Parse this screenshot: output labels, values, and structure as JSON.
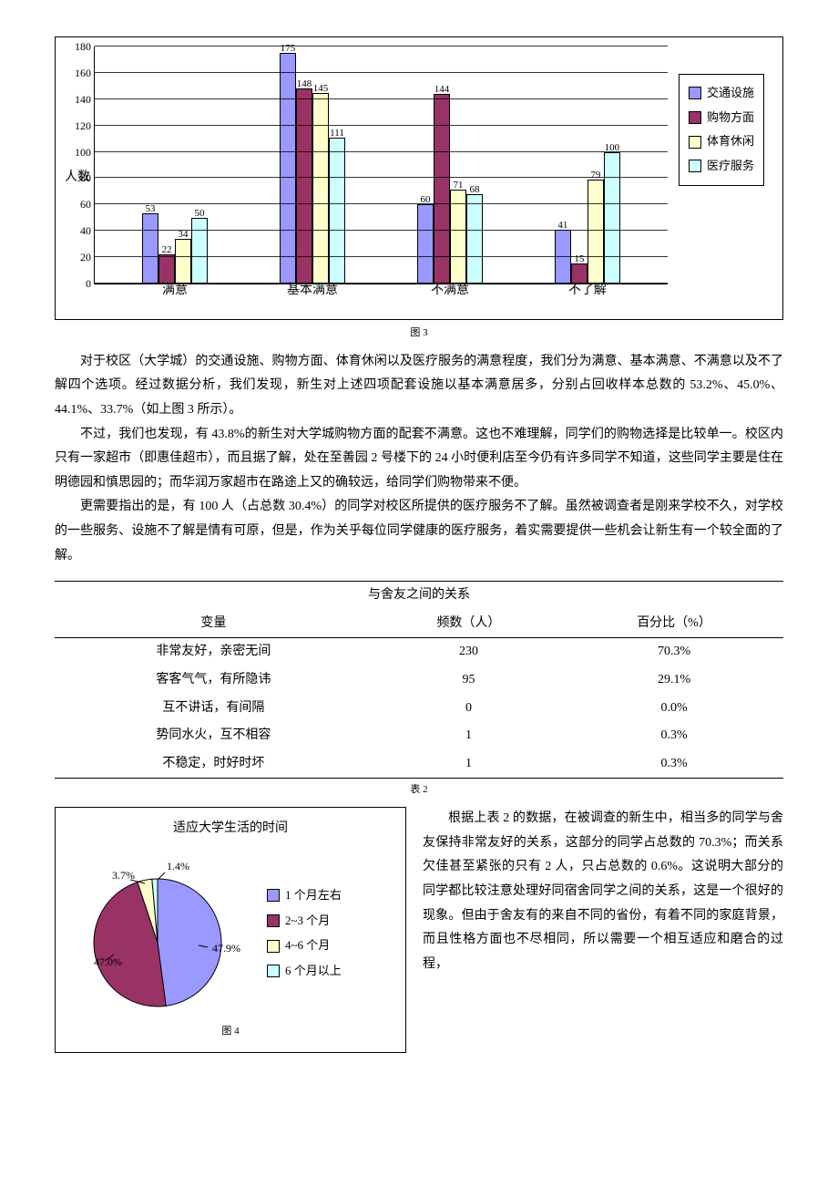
{
  "bar_chart": {
    "type": "bar",
    "y_title": "人数",
    "ylim": [
      0,
      180
    ],
    "ytick_step": 20,
    "yticks": [
      0,
      20,
      40,
      60,
      80,
      100,
      120,
      140,
      160,
      180
    ],
    "categories": [
      "满意",
      "基本满意",
      "不满意",
      "不了解"
    ],
    "series": [
      {
        "name": "交通设施",
        "color": "#9999ff",
        "values": [
          53,
          175,
          60,
          41
        ]
      },
      {
        "name": "购物方面",
        "color": "#993366",
        "values": [
          22,
          148,
          144,
          15
        ]
      },
      {
        "name": "体育休闲",
        "color": "#ffffcc",
        "values": [
          34,
          145,
          71,
          79
        ]
      },
      {
        "name": "医疗服务",
        "color": "#ccffff",
        "values": [
          50,
          111,
          68,
          100
        ]
      }
    ],
    "grid_color": "#000000",
    "background_color": "#ffffff",
    "bar_border": "#000000",
    "label_fontsize": 12
  },
  "captions": {
    "fig3": "图 3",
    "table2": "表 2",
    "fig4": "图 4"
  },
  "paragraphs": {
    "p1": "对于校区（大学城）的交通设施、购物方面、体育休闲以及医疗服务的满意程度，我们分为满意、基本满意、不满意以及不了解四个选项。经过数据分析，我们发现，新生对上述四项配套设施以基本满意居多，分别占回收样本总数的 53.2%、45.0%、44.1%、33.7%（如上图 3 所示）。",
    "p2": "不过，我们也发现，有 43.8%的新生对大学城购物方面的配套不满意。这也不难理解，同学们的购物选择是比较单一。校区内只有一家超市（即惠佳超市），而且据了解，处在至善园 2 号楼下的 24 小时便利店至今仍有许多同学不知道，这些同学主要是住在明德园和慎思园的；而华润万家超市在路途上又的确较远，给同学们购物带来不便。",
    "p3": "更需要指出的是，有 100 人（占总数 30.4%）的同学对校区所提供的医疗服务不了解。虽然被调查者是刚来学校不久，对学校的一些服务、设施不了解是情有可原，但是，作为关乎每位同学健康的医疗服务，着实需要提供一些机会让新生有一个较全面的了解。",
    "p4": "根据上表 2 的数据，在被调查的新生中，相当多的同学与舍友保持非常友好的关系，这部分的同学占总数的 70.3%；而关系欠佳甚至紧张的只有 2 人，只占总数的 0.6%。这说明大部分的同学都比较注意处理好同宿舍同学之间的关系，这是一个很好的现象。但由于舍友有的来自不同的省份，有着不同的家庭背景，而且性格方面也不尽相同，所以需要一个相互适应和磨合的过程，"
  },
  "table": {
    "title": "与舍友之间的关系",
    "columns": [
      "变量",
      "频数（人）",
      "百分比（%）"
    ],
    "rows": [
      [
        "非常友好，亲密无间",
        "230",
        "70.3%"
      ],
      [
        "客客气气，有所隐讳",
        "95",
        "29.1%"
      ],
      [
        "互不讲话，有间隔",
        "0",
        "0.0%"
      ],
      [
        "势同水火，互不相容",
        "1",
        "0.3%"
      ],
      [
        "不稳定，时好时坏",
        "1",
        "0.3%"
      ]
    ]
  },
  "pie_chart": {
    "type": "pie",
    "title": "适应大学生活的时间",
    "slices": [
      {
        "name": "1 个月左右",
        "value": 47.9,
        "label": "47.9%",
        "color": "#9999ff"
      },
      {
        "name": "2~3 个月",
        "value": 47.0,
        "label": "47.0%",
        "color": "#993366"
      },
      {
        "name": "4~6 个月",
        "value": 3.7,
        "label": "3.7%",
        "color": "#ffffcc"
      },
      {
        "name": "6 个月以上",
        "value": 1.4,
        "label": "1.4%",
        "color": "#ccffff"
      }
    ],
    "background_color": "#ffffff",
    "border": "#000000"
  }
}
